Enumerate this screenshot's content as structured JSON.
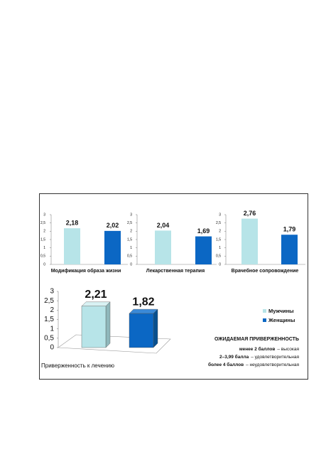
{
  "legend": [
    {
      "name": "Мужчины",
      "color": "#b7e4e8"
    },
    {
      "name": "Женщины",
      "color": "#0b67c4"
    }
  ],
  "chart_data": [
    {
      "type": "bar",
      "title": "Модификация образа жизни",
      "values": [
        2.18,
        2.02
      ],
      "value_labels": [
        "2,18",
        "2,02"
      ],
      "colors": [
        "#b7e4e8",
        "#0b67c4"
      ],
      "ylim": [
        0,
        3
      ],
      "yticks": [
        0,
        {
          "value": 0.5,
          "label": "0,5"
        },
        1,
        {
          "value": 1.5,
          "label": "1,5"
        },
        2,
        {
          "value": 2.5,
          "label": "2,5"
        },
        3
      ]
    },
    {
      "type": "bar",
      "title": "Лекарственная терапия",
      "values": [
        2.04,
        1.69
      ],
      "value_labels": [
        "2,04",
        "1,69"
      ],
      "colors": [
        "#b7e4e8",
        "#0b67c4"
      ],
      "ylim": [
        0,
        3
      ],
      "yticks": [
        0,
        {
          "value": 0.5,
          "label": "0,5"
        },
        1,
        {
          "value": 1.5,
          "label": "1,5"
        },
        2,
        {
          "value": 2.5,
          "label": "2,5"
        },
        3
      ]
    },
    {
      "type": "bar",
      "title": "Врачебное сопровождение",
      "values": [
        2.76,
        1.79
      ],
      "value_labels": [
        "2,76",
        "1,79"
      ],
      "colors": [
        "#b7e4e8",
        "#0b67c4"
      ],
      "ylim": [
        0,
        3
      ],
      "yticks": [
        0,
        {
          "value": 0.5,
          "label": "0,5"
        },
        1,
        {
          "value": 1.5,
          "label": "1,5"
        },
        2,
        {
          "value": 2.5,
          "label": "2,5"
        },
        3
      ]
    },
    {
      "type": "bar3d",
      "title": "Приверженность к лечению",
      "values": [
        2.21,
        1.82
      ],
      "value_labels": [
        "2,21",
        "1,82"
      ],
      "colors": [
        "#b7e4e8",
        "#0b67c4"
      ],
      "ylim": [
        0,
        3
      ],
      "yticks": [
        0,
        {
          "value": 0.5,
          "label": "0,5"
        },
        1,
        {
          "value": 1.5,
          "label": "1,5"
        },
        2,
        {
          "value": 2.5,
          "label": "2,5"
        },
        3
      ]
    }
  ],
  "notes": {
    "heading": "ОЖИДАЕМАЯ ПРИВЕРЖЕННОСТЬ",
    "lines": [
      {
        "bold": "менее 2 баллов",
        "text": "– высокая"
      },
      {
        "bold": "2–3,99 балла",
        "text": "– удовлетворительная"
      },
      {
        "bold": "более 4 баллов",
        "text": "– неудовлетворительная"
      }
    ]
  }
}
